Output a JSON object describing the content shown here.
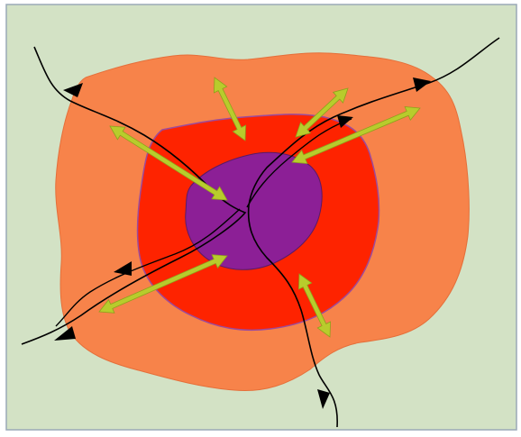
{
  "diagram": {
    "background_color": "#d3e2c5",
    "frame_color": "#9aa9b7",
    "zones": [
      {
        "name": "outer",
        "color": "#f7834a"
      },
      {
        "name": "middle",
        "color": "#fe2300"
      },
      {
        "name": "core",
        "color": "#8c1f96"
      }
    ],
    "route_color": "#000000",
    "expansion_arrow_color": "#b8cc2c",
    "route_count": 4,
    "expansion_arrow_count": 6
  }
}
